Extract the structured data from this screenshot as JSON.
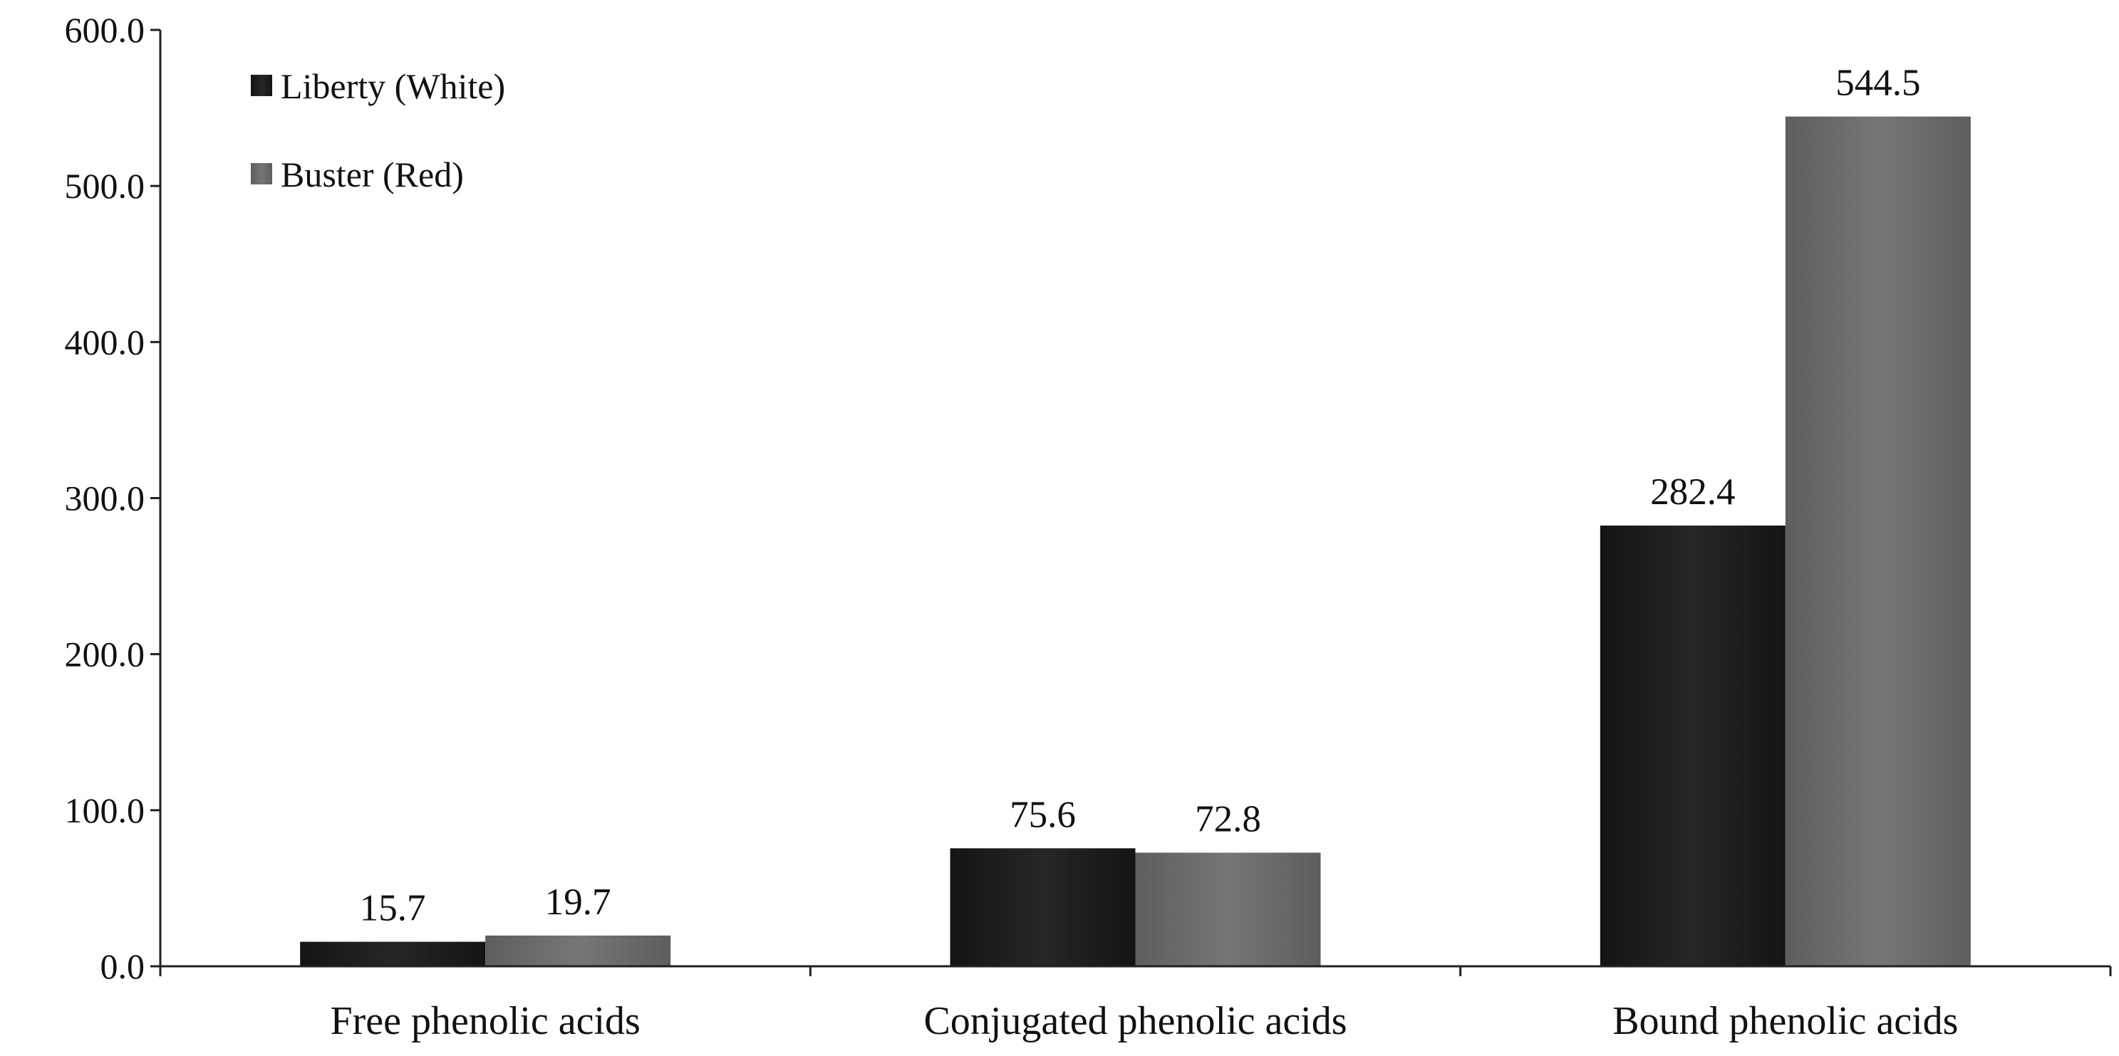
{
  "chart_data": {
    "type": "bar",
    "title": "",
    "xlabel": "",
    "ylabel": "",
    "categories": [
      "Free phenolic acids",
      "Conjugated phenolic acids",
      "Bound phenolic acids"
    ],
    "series": [
      {
        "name": "Liberty (White)",
        "values": [
          15.7,
          75.6,
          282.4
        ],
        "color": "#1f1f1f"
      },
      {
        "name": "Buster (Red)",
        "values": [
          19.7,
          72.8,
          544.5
        ],
        "color": "#6e6e6e"
      }
    ],
    "ylim": [
      0,
      600
    ],
    "yticks": [
      0,
      100,
      200,
      300,
      400,
      500,
      600
    ],
    "ytick_labels": [
      "0.0",
      "100.0",
      "200.0",
      "300.0",
      "400.0",
      "500.0",
      "600.0"
    ],
    "data_labels": [
      [
        "15.7",
        "75.6",
        "282.4"
      ],
      [
        "19.7",
        "72.8",
        "544.5"
      ]
    ],
    "grid": false,
    "legend_position": "top-left"
  }
}
